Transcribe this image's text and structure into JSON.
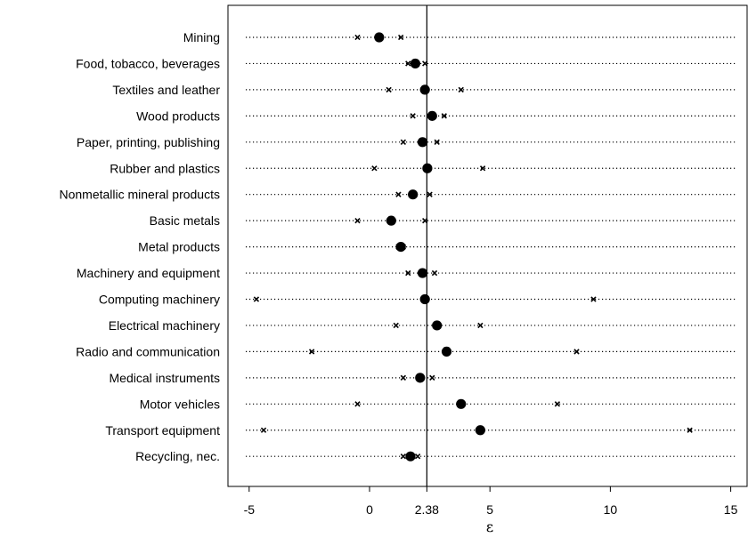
{
  "chart_data": {
    "type": "scatter",
    "subtype": "dot-plot-with-confidence-markers",
    "xlabel": "ε",
    "xlim": [
      -5.8,
      15.3
    ],
    "xticks": [
      -5,
      0,
      2.38,
      5,
      10,
      15
    ],
    "xtick_labels": [
      "-5",
      "0",
      "2.38",
      "5",
      "10",
      "15"
    ],
    "reference_line": 2.38,
    "grid": false,
    "categories": [
      "Mining",
      "Food, tobacco, beverages",
      "Textiles and leather",
      "Wood products",
      "Paper, printing, publishing",
      "Rubber and plastics",
      "Nonmetallic mineral products",
      "Basic metals",
      "Metal products",
      "Machinery and equipment",
      "Computing machinery",
      "Electrical machinery",
      "Radio and communication",
      "Medical instruments",
      "Motor vehicles",
      "Transport equipment",
      "Recycling, nec."
    ],
    "estimates": [
      0.4,
      1.9,
      2.3,
      2.6,
      2.2,
      2.4,
      1.8,
      0.9,
      1.3,
      2.2,
      2.3,
      2.8,
      3.2,
      2.1,
      3.8,
      4.6,
      1.7
    ],
    "lower": [
      -0.5,
      1.6,
      0.8,
      1.8,
      1.4,
      0.2,
      1.2,
      -0.5,
      1.2,
      1.6,
      -4.7,
      1.1,
      -2.4,
      1.4,
      -0.5,
      -4.4,
      1.4
    ],
    "upper": [
      1.3,
      2.3,
      3.8,
      3.1,
      2.8,
      4.7,
      2.5,
      2.3,
      1.4,
      2.7,
      9.3,
      4.6,
      8.6,
      2.6,
      7.8,
      13.3,
      2.0
    ]
  }
}
